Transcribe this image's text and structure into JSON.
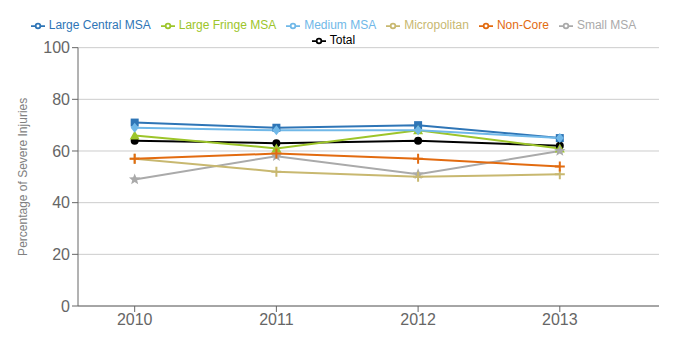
{
  "chart_data": {
    "type": "line",
    "ylabel": "Percentage of Severe Injuries",
    "x": [
      2010,
      2011,
      2012,
      2013
    ],
    "series": [
      {
        "name": "Total",
        "color": "#000000",
        "marker": "circle",
        "values": [
          64,
          63,
          64,
          62
        ]
      },
      {
        "name": "Large Central MSA",
        "color": "#2E75B6",
        "marker": "square",
        "values": [
          71,
          69,
          70,
          65
        ]
      },
      {
        "name": "Large Fringe MSA",
        "color": "#9DC52A",
        "marker": "triangle",
        "values": [
          66,
          61,
          68,
          61
        ]
      },
      {
        "name": "Medium MSA",
        "color": "#70B8E8",
        "marker": "diamond",
        "values": [
          69,
          68,
          68,
          65
        ]
      },
      {
        "name": "Small MSA",
        "color": "#AAAAAA",
        "marker": "star",
        "values": [
          49,
          58,
          51,
          60
        ]
      },
      {
        "name": "Micropolitan",
        "color": "#C8B870",
        "marker": "plus",
        "values": [
          57,
          52,
          50,
          51
        ]
      },
      {
        "name": "Non-Core",
        "color": "#E26B10",
        "marker": "plus",
        "values": [
          57,
          59,
          57,
          54
        ]
      }
    ],
    "xlim": [
      2009.6,
      2013.7
    ],
    "xticks": [
      2010,
      2011,
      2012,
      2013
    ],
    "ylim": [
      0,
      100
    ],
    "yticks": [
      0,
      20,
      40,
      60,
      80,
      100
    ],
    "grid": true,
    "legend": "top"
  }
}
